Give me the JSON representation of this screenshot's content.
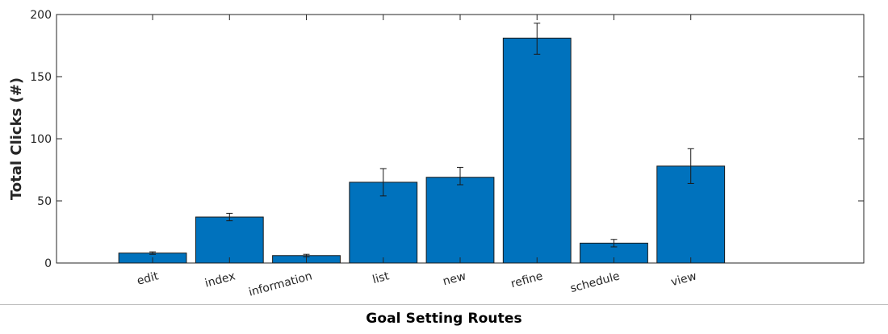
{
  "chart_data": {
    "type": "bar",
    "title": "",
    "xlabel": "Goal Setting Routes",
    "ylabel": "Total Clicks (#)",
    "categories": [
      "edit",
      "index",
      "information",
      "list",
      "new",
      "refine",
      "schedule",
      "view"
    ],
    "values": [
      8,
      37,
      6,
      65,
      69,
      181,
      16,
      78
    ],
    "error_low": [
      7,
      34,
      5,
      54,
      63,
      168,
      13,
      64
    ],
    "error_high": [
      9,
      40,
      7,
      76,
      77,
      193,
      19,
      92
    ],
    "ylim": [
      0,
      200
    ],
    "yticks": [
      0,
      50,
      100,
      150,
      200
    ],
    "grid": false,
    "legend": "none",
    "bar_color": "#0072BD",
    "edge_color": "#1a1a1a",
    "axis_color": "#262626"
  }
}
